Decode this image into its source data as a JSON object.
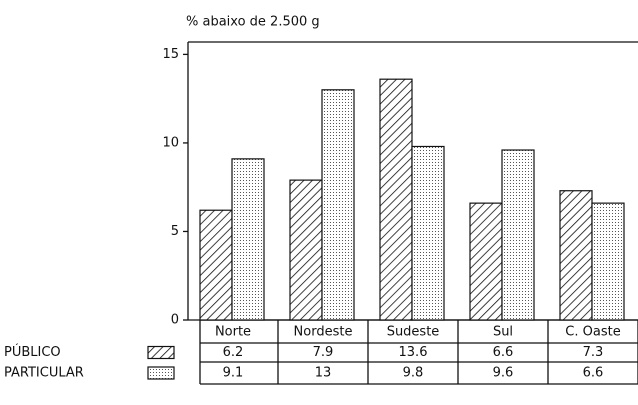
{
  "chart_data": {
    "type": "bar",
    "title": "% abaixo de 2.500 g",
    "categories": [
      "Norte",
      "Nordeste",
      "Sudeste",
      "Sul",
      "C. Oaste"
    ],
    "series": [
      {
        "name": "PÚBLICO",
        "values": [
          6.2,
          7.9,
          13.6,
          6.6,
          7.3
        ]
      },
      {
        "name": "PARTICULAR",
        "values": [
          9.1,
          13,
          9.8,
          9.6,
          6.6
        ]
      }
    ],
    "ylim": [
      0,
      15.7
    ],
    "yticks": [
      0,
      5,
      10,
      15
    ]
  }
}
